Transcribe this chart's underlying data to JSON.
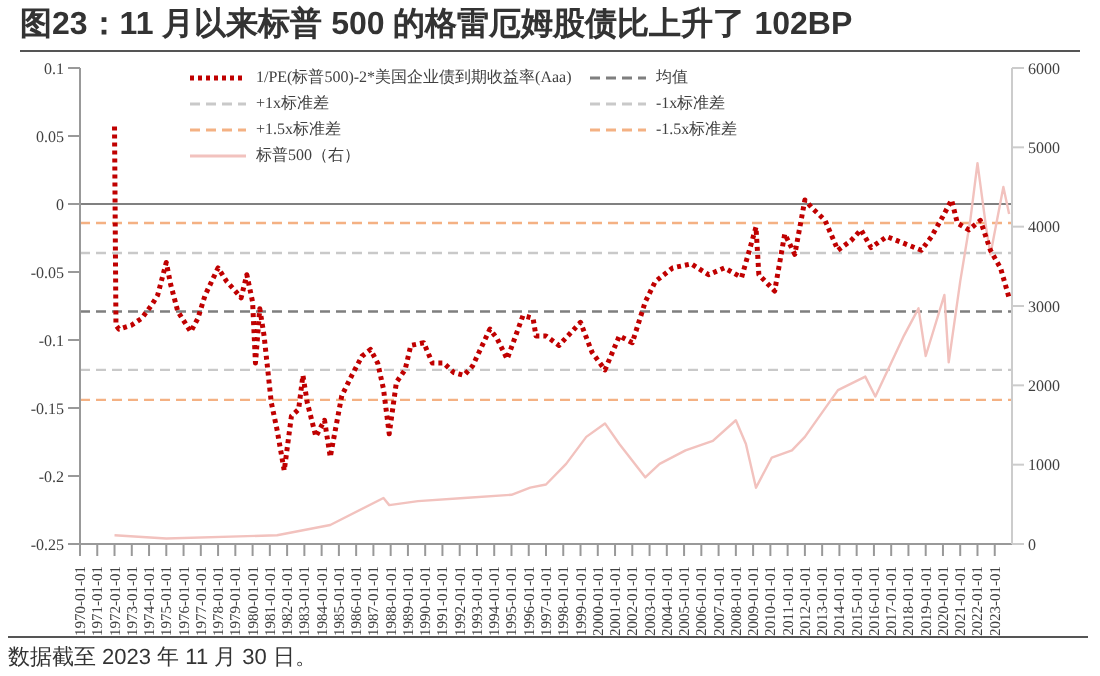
{
  "chart_data": {
    "type": "line",
    "title": "图23：11 月以来标普 500 的格雷厄姆股债比上升了 102BP",
    "annotations": [
      "数据截至 2023 年 11 月 30 日。"
    ],
    "series": [
      {
        "name": "1/PE(标普500)-2*美国企业债到期收益率(Aaa)",
        "color": "#c00000",
        "line_style": "dotted",
        "x": [
          "1972-01",
          "1972-02",
          "1972-04",
          "1973-01",
          "1973-08",
          "1974-03",
          "1974-07",
          "1975-01",
          "1975-04",
          "1975-09",
          "1976-06",
          "1976-11",
          "1977-04",
          "1978-01",
          "1978-07",
          "1979-01",
          "1979-05",
          "1979-09",
          "1980-01",
          "1980-03",
          "1980-06",
          "1980-09",
          "1981-02",
          "1981-06",
          "1981-11",
          "1982-04",
          "1982-09",
          "1982-12",
          "1983-03",
          "1983-09",
          "1984-03",
          "1984-07",
          "1985-03",
          "1985-10",
          "1986-05",
          "1986-11",
          "1987-04",
          "1987-08",
          "1987-12",
          "1988-05",
          "1988-11",
          "1989-03",
          "1989-12",
          "1990-06",
          "1991-02",
          "1991-09",
          "1992-04",
          "1992-10",
          "1993-10",
          "1994-03",
          "1994-10",
          "1995-09",
          "1996-04",
          "1996-06",
          "1997-01",
          "1997-10",
          "1999-01",
          "1999-09",
          "2000-06",
          "2001-04",
          "2002-01",
          "2002-10",
          "2003-05",
          "2004-05",
          "2005-06",
          "2006-06",
          "2007-05",
          "2008-05",
          "2009-03",
          "2009-05",
          "2010-04",
          "2010-11",
          "2011-06",
          "2012-01",
          "2012-07",
          "2013-03",
          "2013-12",
          "2014-09",
          "2015-04",
          "2015-11",
          "2016-10",
          "2017-10",
          "2018-10",
          "2019-05",
          "2020-01",
          "2020-07",
          "2020-11",
          "2021-07",
          "2022-03",
          "2022-10",
          "2023-05",
          "2023-11"
        ],
        "values": [
          0.057,
          -0.089,
          -0.092,
          -0.089,
          -0.084,
          -0.074,
          -0.067,
          -0.043,
          -0.059,
          -0.079,
          -0.094,
          -0.084,
          -0.067,
          -0.047,
          -0.057,
          -0.064,
          -0.069,
          -0.052,
          -0.072,
          -0.117,
          -0.077,
          -0.097,
          -0.146,
          -0.166,
          -0.196,
          -0.156,
          -0.151,
          -0.126,
          -0.146,
          -0.171,
          -0.159,
          -0.186,
          -0.141,
          -0.126,
          -0.112,
          -0.107,
          -0.117,
          -0.136,
          -0.169,
          -0.131,
          -0.122,
          -0.104,
          -0.102,
          -0.117,
          -0.117,
          -0.124,
          -0.126,
          -0.119,
          -0.092,
          -0.099,
          -0.114,
          -0.082,
          -0.084,
          -0.097,
          -0.097,
          -0.104,
          -0.087,
          -0.109,
          -0.122,
          -0.097,
          -0.102,
          -0.072,
          -0.057,
          -0.047,
          -0.044,
          -0.052,
          -0.047,
          -0.054,
          -0.017,
          -0.052,
          -0.064,
          -0.022,
          -0.037,
          0.003,
          -0.004,
          -0.012,
          -0.034,
          -0.027,
          -0.019,
          -0.032,
          -0.024,
          -0.029,
          -0.034,
          -0.024,
          -0.009,
          0.003,
          -0.014,
          -0.019,
          -0.012,
          -0.034,
          -0.047,
          -0.069
        ]
      },
      {
        "name": "标普500（右）",
        "color": "#f2c2be",
        "axis": "y2",
        "line_style": "solid",
        "x": [
          "1972-01",
          "1975-01",
          "1981-06",
          "1984-07",
          "1987-08",
          "1987-12",
          "1989-08",
          "1992-04",
          "1995-01",
          "1996-02",
          "1997-01",
          "1998-03",
          "1999-05",
          "2000-06",
          "2001-04",
          "2002-10",
          "2003-08",
          "2005-02",
          "2006-09",
          "2008-01",
          "2008-08",
          "2009-03",
          "2010-02",
          "2011-04",
          "2012-01",
          "2013-12",
          "2015-07",
          "2016-02",
          "2017-10",
          "2018-08",
          "2019-01",
          "2020-02",
          "2020-05",
          "2021-01",
          "2021-08",
          "2022-01",
          "2022-07",
          "2022-10",
          "2023-07",
          "2023-11"
        ],
        "values": [
          110,
          70,
          110,
          240,
          580,
          490,
          540,
          580,
          620,
          710,
          750,
          1010,
          1350,
          1520,
          1260,
          840,
          1010,
          1180,
          1300,
          1560,
          1260,
          710,
          1090,
          1180,
          1350,
          1940,
          2110,
          1860,
          2630,
          2970,
          2370,
          3140,
          2290,
          3310,
          4080,
          4800,
          3990,
          3650,
          4500,
          4160
        ]
      }
    ],
    "ref_lines": [
      {
        "axis": "y",
        "value": -0.079,
        "label": "均值",
        "color": "#7f7f7f",
        "line_style": "dashed"
      },
      {
        "axis": "y",
        "value": -0.036,
        "label": "+1x标准差",
        "color": "#c9c9c9",
        "line_style": "dashed"
      },
      {
        "axis": "y",
        "value": -0.122,
        "label": "-1x标准差",
        "color": "#c9c9c9",
        "line_style": "dashed"
      },
      {
        "axis": "y",
        "value": -0.014,
        "label": "+1.5x标准差",
        "color": "#f4b183",
        "line_style": "dashed"
      },
      {
        "axis": "y",
        "value": -0.144,
        "label": "-1.5x标准差",
        "color": "#f4b183",
        "line_style": "dashed"
      },
      {
        "axis": "y",
        "value": 0,
        "color": "#808080",
        "line_style": "solid"
      }
    ],
    "xlim": [
      "1970-01-01",
      "2024-01-01"
    ],
    "xticks": [
      "1970-01-01",
      "1971-01-01",
      "1972-01-01",
      "1973-01-01",
      "1974-01-01",
      "1975-01-01",
      "1976-01-01",
      "1977-01-01",
      "1978-01-01",
      "1979-01-01",
      "1980-01-01",
      "1981-01-01",
      "1982-01-01",
      "1983-01-01",
      "1984-01-01",
      "1985-01-01",
      "1986-01-01",
      "1987-01-01",
      "1988-01-01",
      "1989-01-01",
      "1990-01-01",
      "1991-01-01",
      "1992-01-01",
      "1993-01-01",
      "1994-01-01",
      "1995-01-01",
      "1996-01-01",
      "1997-01-01",
      "1998-01-01",
      "1999-01-01",
      "2000-01-01",
      "2001-01-01",
      "2002-01-01",
      "2003-01-01",
      "2004-01-01",
      "2005-01-01",
      "2006-01-01",
      "2007-01-01",
      "2008-01-01",
      "2009-01-01",
      "2010-01-01",
      "2011-01-01",
      "2012-01-01",
      "2013-01-01",
      "2014-01-01",
      "2015-01-01",
      "2016-01-01",
      "2017-01-01",
      "2018-01-01",
      "2019-01-01",
      "2020-01-01",
      "2021-01-01",
      "2022-01-01",
      "2023-01-01"
    ],
    "ylim": [
      -0.25,
      0.1
    ],
    "yticks": [
      0.1,
      0.05,
      0,
      -0.05,
      -0.1,
      -0.15,
      -0.2,
      -0.25
    ],
    "y2lim": [
      0,
      6000
    ],
    "y2ticks": [
      0,
      1000,
      2000,
      3000,
      4000,
      5000,
      6000
    ],
    "legend": "top",
    "marker": "none"
  }
}
